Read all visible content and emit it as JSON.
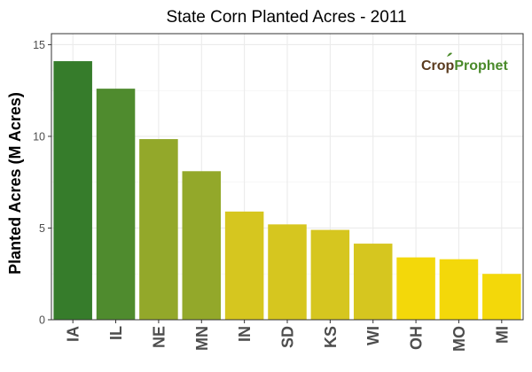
{
  "chart_data": {
    "type": "bar",
    "title": "State Corn Planted Acres - 2011",
    "xlabel": "",
    "ylabel": "Planted Acres (M Acres)",
    "categories": [
      "IA",
      "IL",
      "NE",
      "MN",
      "IN",
      "SD",
      "KS",
      "WI",
      "OH",
      "MO",
      "MI"
    ],
    "values": [
      14.1,
      12.6,
      9.85,
      8.1,
      5.9,
      5.2,
      4.9,
      4.15,
      3.4,
      3.3,
      2.5
    ],
    "colors": [
      "#367c2b",
      "#4f8b2e",
      "#93a82a",
      "#93a82a",
      "#d6c61f",
      "#d6c61f",
      "#d6c61f",
      "#d6c61f",
      "#f3d80a",
      "#f3d80a",
      "#f3d80a"
    ],
    "ylim": [
      0,
      15.6
    ],
    "yticks": [
      "0",
      "5",
      "10",
      "15"
    ],
    "grid": true,
    "legend": "none"
  },
  "watermark": {
    "text_part1": "Crop",
    "text_part2": "Prophet"
  }
}
